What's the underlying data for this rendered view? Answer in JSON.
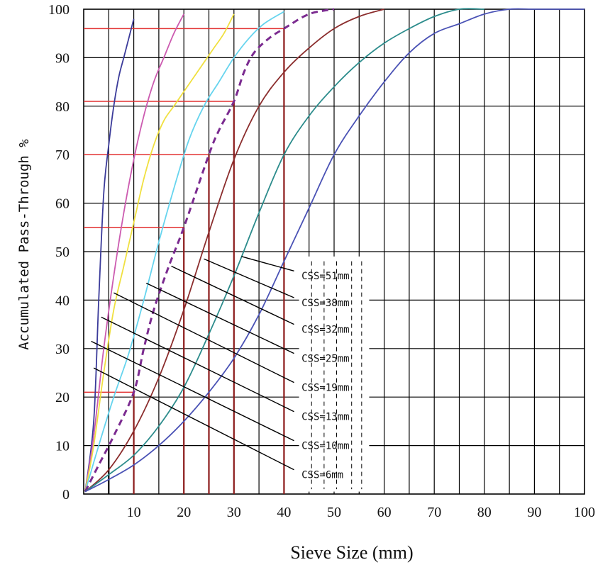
{
  "chart_data": {
    "type": "line",
    "xlabel": "Sieve Size (mm)",
    "ylabel": "Accumulated Pass-Through  %",
    "xlim": [
      0,
      100
    ],
    "ylim": [
      0,
      100
    ],
    "x_ticks": [
      10,
      20,
      30,
      40,
      50,
      60,
      70,
      80,
      90,
      100
    ],
    "y_ticks": [
      0,
      10,
      20,
      30,
      40,
      50,
      60,
      70,
      80,
      90,
      100
    ],
    "grid": true,
    "series": [
      {
        "name": "CSS=6mm",
        "color": "#3b3b9a",
        "points": [
          [
            0.3,
            0.5
          ],
          [
            2,
            15
          ],
          [
            3,
            40
          ],
          [
            4,
            62
          ],
          [
            5,
            72
          ],
          [
            6,
            80
          ],
          [
            7,
            86
          ],
          [
            8,
            90
          ],
          [
            9,
            94
          ],
          [
            10,
            98
          ]
        ]
      },
      {
        "name": "CSS=10mm",
        "color": "#cc5bb0",
        "points": [
          [
            0.3,
            0.5
          ],
          [
            2,
            12
          ],
          [
            4,
            30
          ],
          [
            6,
            45
          ],
          [
            8,
            58
          ],
          [
            10,
            69
          ],
          [
            12,
            78
          ],
          [
            14,
            85
          ],
          [
            16,
            90
          ],
          [
            18,
            95
          ],
          [
            20,
            99
          ]
        ]
      },
      {
        "name": "CSS=13mm",
        "color": "#f0e040",
        "points": [
          [
            0.3,
            0.5
          ],
          [
            2,
            10
          ],
          [
            4,
            25
          ],
          [
            6,
            38
          ],
          [
            8,
            47
          ],
          [
            10,
            56
          ],
          [
            12,
            65
          ],
          [
            14,
            72
          ],
          [
            16,
            77
          ],
          [
            18,
            80
          ],
          [
            20,
            83
          ],
          [
            22,
            86
          ],
          [
            24,
            89
          ],
          [
            26,
            92
          ],
          [
            28,
            95
          ],
          [
            30,
            99
          ]
        ]
      },
      {
        "name": "CSS=19mm",
        "color": "#66d4ee",
        "points": [
          [
            0.3,
            0.5
          ],
          [
            3,
            10
          ],
          [
            6,
            20
          ],
          [
            9,
            29
          ],
          [
            12,
            40
          ],
          [
            15,
            52
          ],
          [
            18,
            63
          ],
          [
            21,
            73
          ],
          [
            24,
            80
          ],
          [
            27,
            85
          ],
          [
            30,
            90
          ],
          [
            33,
            94
          ],
          [
            36,
            97
          ],
          [
            40,
            99.5
          ]
        ]
      },
      {
        "name": "CSS=25mm",
        "color": "#7b2b90",
        "dashed": true,
        "points": [
          [
            0.3,
            0.5
          ],
          [
            3,
            6
          ],
          [
            6,
            12
          ],
          [
            10,
            21
          ],
          [
            12,
            30
          ],
          [
            14,
            38
          ],
          [
            17,
            47
          ],
          [
            20,
            55
          ],
          [
            25,
            70
          ],
          [
            27,
            75
          ],
          [
            30,
            81
          ],
          [
            32,
            87
          ],
          [
            34,
            91
          ],
          [
            37,
            94
          ],
          [
            40,
            96
          ],
          [
            45,
            99
          ],
          [
            50,
            100
          ]
        ]
      },
      {
        "name": "CSS=32mm",
        "color": "#8b2d2d",
        "points": [
          [
            0.3,
            0.5
          ],
          [
            5,
            5
          ],
          [
            10,
            13
          ],
          [
            15,
            24
          ],
          [
            20,
            38
          ],
          [
            25,
            54
          ],
          [
            30,
            69
          ],
          [
            35,
            80
          ],
          [
            40,
            87
          ],
          [
            45,
            92
          ],
          [
            50,
            96
          ],
          [
            55,
            98.5
          ],
          [
            60,
            100
          ]
        ]
      },
      {
        "name": "CSS=38mm",
        "color": "#2c8c8c",
        "points": [
          [
            0.3,
            0.5
          ],
          [
            5,
            4
          ],
          [
            10,
            8
          ],
          [
            15,
            14
          ],
          [
            20,
            22
          ],
          [
            25,
            33
          ],
          [
            30,
            45
          ],
          [
            35,
            58
          ],
          [
            40,
            70
          ],
          [
            45,
            78
          ],
          [
            50,
            84
          ],
          [
            55,
            89
          ],
          [
            60,
            93
          ],
          [
            65,
            96
          ],
          [
            70,
            98.5
          ],
          [
            75,
            100
          ],
          [
            80,
            100
          ]
        ]
      },
      {
        "name": "CSS=51mm",
        "color": "#4a52b5",
        "points": [
          [
            0.3,
            0.5
          ],
          [
            5,
            3
          ],
          [
            10,
            6
          ],
          [
            15,
            10
          ],
          [
            20,
            15
          ],
          [
            25,
            21
          ],
          [
            30,
            28
          ],
          [
            35,
            37
          ],
          [
            40,
            48
          ],
          [
            45,
            59
          ],
          [
            50,
            70
          ],
          [
            55,
            78
          ],
          [
            60,
            85
          ],
          [
            65,
            91
          ],
          [
            70,
            95
          ],
          [
            75,
            97
          ],
          [
            80,
            99
          ],
          [
            85,
            100
          ],
          [
            90,
            100
          ],
          [
            95,
            100
          ],
          [
            100,
            100
          ]
        ]
      }
    ],
    "reference_lines": [
      {
        "x": 10,
        "y": 21
      },
      {
        "x": 20,
        "y": 55
      },
      {
        "x": 25,
        "y": 70
      },
      {
        "x": 30,
        "y": 81
      },
      {
        "x": 40,
        "y": 96
      }
    ],
    "css_labels": [
      "CSS=51mm",
      "CSS=38mm",
      "CSS=32mm",
      "CSS=25mm",
      "CSS=19mm",
      "CSS=13mm",
      "CSS=10mm",
      "CSS=6mm"
    ]
  }
}
